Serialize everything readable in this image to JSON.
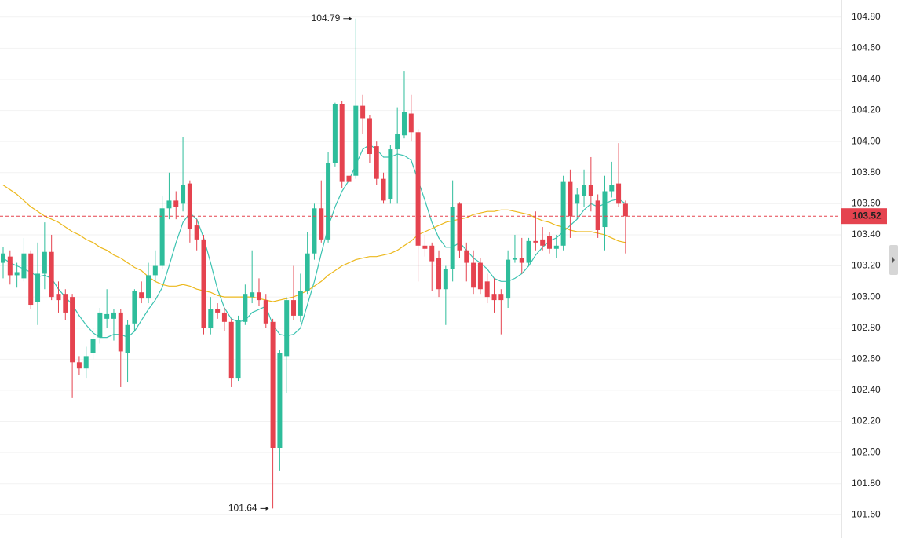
{
  "chart_data": {
    "type": "candlestick",
    "up_color": "#2ebd9b",
    "down_color": "#e5434f",
    "open": [
      103.22,
      103.26,
      103.14,
      103.12,
      103.28,
      102.97,
      103.15,
      103.29,
      103.02,
      103.02,
      103.0,
      102.58,
      102.54,
      102.64,
      102.74,
      102.86,
      102.86,
      102.9,
      102.64,
      102.83,
      103.03,
      102.99,
      103.14,
      103.2,
      103.57,
      103.62,
      103.6,
      103.73,
      103.46,
      103.37,
      102.8,
      102.92,
      102.9,
      102.84,
      102.48,
      102.84,
      103.0,
      103.03,
      102.98,
      102.84,
      102.03,
      102.62,
      102.98,
      102.88,
      103.04,
      103.28,
      103.57,
      103.37,
      103.86,
      104.24,
      103.78,
      103.78,
      104.23,
      104.15,
      103.97,
      103.76,
      103.63,
      103.95,
      104.04,
      104.18,
      104.06,
      103.33,
      103.33,
      103.25,
      103.05,
      103.18,
      103.6,
      103.3,
      103.22,
      103.22,
      103.1,
      103.02,
      103.02,
      102.99,
      103.24,
      103.25,
      103.22,
      103.36,
      103.37,
      103.39,
      103.31,
      103.33,
      103.74,
      103.6,
      103.65,
      103.72,
      103.62,
      103.45,
      103.68,
      103.73,
      103.6
    ],
    "high": [
      103.32,
      103.3,
      103.22,
      103.38,
      103.3,
      103.35,
      103.48,
      103.4,
      103.1,
      103.05,
      103.02,
      102.62,
      102.68,
      102.8,
      102.93,
      103.05,
      102.92,
      102.92,
      102.85,
      103.05,
      103.1,
      103.22,
      103.3,
      103.65,
      103.8,
      103.68,
      104.03,
      103.75,
      103.5,
      103.4,
      103.0,
      102.96,
      102.93,
      102.86,
      102.88,
      103.08,
      103.3,
      103.12,
      103.02,
      102.86,
      102.66,
      103.0,
      103.2,
      103.15,
      103.42,
      103.6,
      103.75,
      103.93,
      104.25,
      104.26,
      103.8,
      104.79,
      104.3,
      104.17,
      104.0,
      103.8,
      103.98,
      104.22,
      104.45,
      104.3,
      104.08,
      103.4,
      103.35,
      103.3,
      103.2,
      103.75,
      103.61,
      103.35,
      103.3,
      103.25,
      103.15,
      103.12,
      103.05,
      103.3,
      103.4,
      103.38,
      103.38,
      103.55,
      103.45,
      103.42,
      103.4,
      103.78,
      103.82,
      103.7,
      103.82,
      103.9,
      103.66,
      103.78,
      103.87,
      103.99,
      103.62
    ],
    "low": [
      103.12,
      103.08,
      103.06,
      103.1,
      102.92,
      102.82,
      103.05,
      102.98,
      102.9,
      102.85,
      102.35,
      102.5,
      102.48,
      102.6,
      102.7,
      102.8,
      102.72,
      102.42,
      102.45,
      102.78,
      102.96,
      102.96,
      103.1,
      103.18,
      103.5,
      103.5,
      103.55,
      103.35,
      103.3,
      102.76,
      102.76,
      102.86,
      102.78,
      102.42,
      102.46,
      102.82,
      102.96,
      102.94,
      102.8,
      101.64,
      101.88,
      102.38,
      102.85,
      102.84,
      103.02,
      103.24,
      103.35,
      103.35,
      103.84,
      103.7,
      103.66,
      103.76,
      104.05,
      103.86,
      103.72,
      103.6,
      103.6,
      103.6,
      104.02,
      104.0,
      103.1,
      103.26,
      103.04,
      103.0,
      102.82,
      103.1,
      103.25,
      103.1,
      103.02,
      103.02,
      102.96,
      102.9,
      102.76,
      102.93,
      103.22,
      103.15,
      103.2,
      103.3,
      103.3,
      103.28,
      103.25,
      103.3,
      103.38,
      103.5,
      103.58,
      103.55,
      103.38,
      103.3,
      103.64,
      103.58,
      103.28
    ],
    "close": [
      103.28,
      103.14,
      103.16,
      103.28,
      102.95,
      103.15,
      103.29,
      103.0,
      102.98,
      102.9,
      102.58,
      102.54,
      102.62,
      102.73,
      102.9,
      102.89,
      102.9,
      102.65,
      102.82,
      103.04,
      102.99,
      103.14,
      103.2,
      103.57,
      103.62,
      103.58,
      103.72,
      103.44,
      103.37,
      102.8,
      102.92,
      102.9,
      102.84,
      102.48,
      102.85,
      103.02,
      103.03,
      102.98,
      102.83,
      102.03,
      102.64,
      102.98,
      102.88,
      103.04,
      103.28,
      103.57,
      103.37,
      103.86,
      104.24,
      103.74,
      103.74,
      104.23,
      104.15,
      103.92,
      103.76,
      103.62,
      103.95,
      104.05,
      104.19,
      104.06,
      103.33,
      103.31,
      103.23,
      103.05,
      103.18,
      103.58,
      103.3,
      103.22,
      103.06,
      103.05,
      103.0,
      102.98,
      102.98,
      103.24,
      103.25,
      103.22,
      103.36,
      103.35,
      103.33,
      103.31,
      103.33,
      103.74,
      103.52,
      103.66,
      103.72,
      103.65,
      103.43,
      103.68,
      103.72,
      103.6,
      103.52
    ],
    "series": [
      {
        "color": "#3cc3b1",
        "values": [
          103.25,
          103.22,
          103.2,
          103.18,
          103.16,
          103.13,
          103.14,
          103.12,
          103.05,
          103.0,
          102.95,
          102.88,
          102.82,
          102.77,
          102.74,
          102.74,
          102.76,
          102.76,
          102.74,
          102.78,
          102.85,
          102.92,
          102.98,
          103.06,
          103.2,
          103.35,
          103.48,
          103.54,
          103.5,
          103.38,
          103.22,
          103.05,
          102.93,
          102.86,
          102.84,
          102.85,
          102.9,
          102.92,
          102.94,
          102.82,
          102.76,
          102.75,
          102.76,
          102.8,
          102.95,
          103.1,
          103.28,
          103.45,
          103.58,
          103.68,
          103.75,
          103.85,
          103.95,
          103.98,
          103.95,
          103.9,
          103.9,
          103.92,
          103.91,
          103.88,
          103.75,
          103.62,
          103.48,
          103.38,
          103.32,
          103.32,
          103.35,
          103.3,
          103.25,
          103.22,
          103.18,
          103.12,
          103.1,
          103.1,
          103.12,
          103.15,
          103.2,
          103.27,
          103.32,
          103.36,
          103.38,
          103.42,
          103.46,
          103.5,
          103.56,
          103.6,
          103.58,
          103.6,
          103.62,
          103.63,
          103.6
        ]
      },
      {
        "color": "#ecb81c",
        "values": [
          103.72,
          103.69,
          103.66,
          103.62,
          103.58,
          103.55,
          103.52,
          103.5,
          103.48,
          103.45,
          103.42,
          103.4,
          103.37,
          103.35,
          103.32,
          103.3,
          103.27,
          103.25,
          103.22,
          103.19,
          103.17,
          103.13,
          103.1,
          103.08,
          103.07,
          103.07,
          103.08,
          103.07,
          103.05,
          103.04,
          103.03,
          103.01,
          103.0,
          103.0,
          103.0,
          103.0,
          103.0,
          102.99,
          102.98,
          102.97,
          102.98,
          102.99,
          103.0,
          103.02,
          103.04,
          103.07,
          103.1,
          103.14,
          103.17,
          103.2,
          103.22,
          103.24,
          103.25,
          103.26,
          103.26,
          103.27,
          103.28,
          103.3,
          103.33,
          103.36,
          103.4,
          103.42,
          103.44,
          103.46,
          103.48,
          103.49,
          103.5,
          103.51,
          103.53,
          103.54,
          103.55,
          103.55,
          103.56,
          103.56,
          103.55,
          103.54,
          103.53,
          103.51,
          103.49,
          103.48,
          103.46,
          103.45,
          103.43,
          103.42,
          103.42,
          103.42,
          103.41,
          103.4,
          103.38,
          103.36,
          103.35
        ]
      }
    ],
    "high_marker": 104.79,
    "low_marker": 101.64,
    "last_price": 103.52,
    "ylim": [
      101.45,
      104.91
    ],
    "yticks": [
      {
        "value": 104.8,
        "label": "104.80"
      },
      {
        "value": 104.6,
        "label": "104.60"
      },
      {
        "value": 104.4,
        "label": "104.40"
      },
      {
        "value": 104.2,
        "label": "104.20"
      },
      {
        "value": 104.0,
        "label": "104.00"
      },
      {
        "value": 103.8,
        "label": "103.80"
      },
      {
        "value": 103.6,
        "label": "103.60"
      },
      {
        "value": 103.4,
        "label": "103.40"
      },
      {
        "value": 103.2,
        "label": "103.20"
      },
      {
        "value": 103.0,
        "label": "103.00"
      },
      {
        "value": 102.8,
        "label": "102.80"
      },
      {
        "value": 102.6,
        "label": "102.60"
      },
      {
        "value": 102.4,
        "label": "102.40"
      },
      {
        "value": 102.2,
        "label": "102.20"
      },
      {
        "value": 102.0,
        "label": "102.00"
      },
      {
        "value": 101.8,
        "label": "101.80"
      },
      {
        "value": 101.6,
        "label": "101.60"
      }
    ],
    "grid": true
  }
}
